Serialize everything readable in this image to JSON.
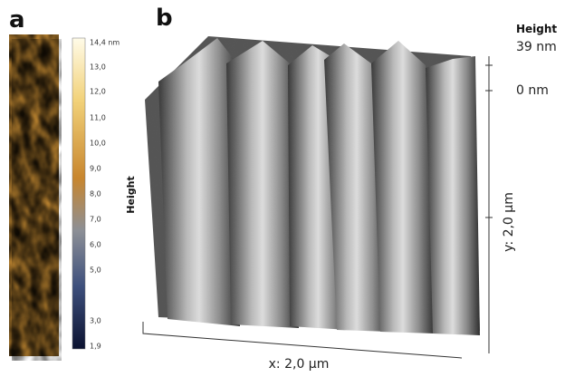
{
  "panel_a": {
    "label": "a",
    "colorbar": {
      "title": "Height",
      "ticks": [
        "14,4 nm",
        "13,0",
        "12,0",
        "11,0",
        "10,0",
        "9,0",
        "8,0",
        "7,0",
        "6,0",
        "5,0",
        "3,0",
        "1,9"
      ]
    }
  },
  "panel_b": {
    "label": "b",
    "height_title": "Height",
    "height_max": "39 nm",
    "height_min": "0 nm",
    "x_axis": "x: 2,0 µm",
    "y_axis": "y: 2,0 µm"
  }
}
